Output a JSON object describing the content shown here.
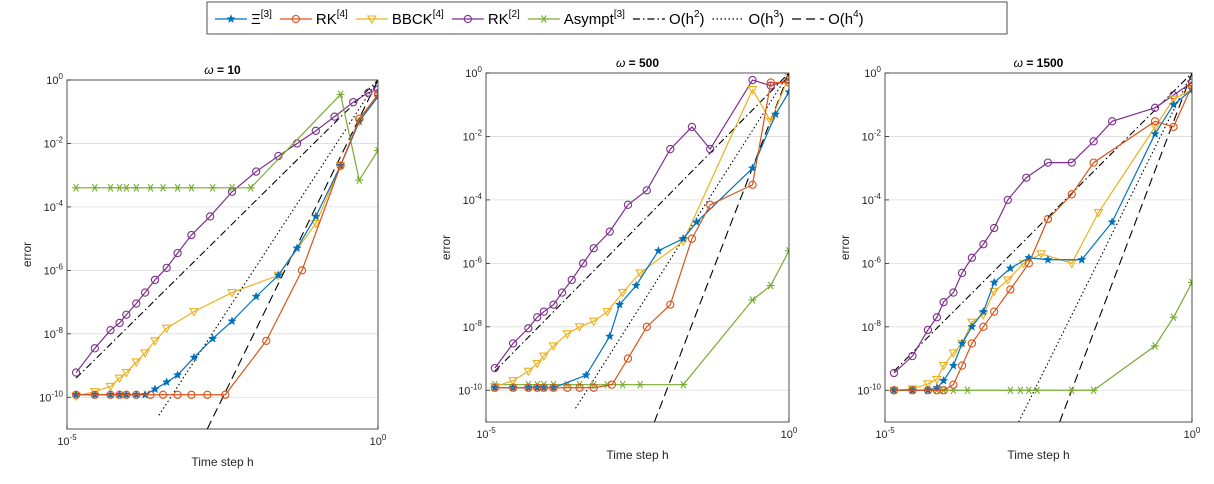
{
  "legend": {
    "entries": [
      {
        "series": "xi3",
        "label": "Ξ",
        "sup": "[3]"
      },
      {
        "series": "rk4",
        "label": "RK",
        "sup": "[4]"
      },
      {
        "series": "bbck4",
        "label": "BBCK",
        "sup": "[4]"
      },
      {
        "series": "rk2",
        "label": "RK",
        "sup": "[2]"
      },
      {
        "series": "asympt3",
        "label": "Asympt",
        "sup": "[3]"
      },
      {
        "series": "o2",
        "label": "O(h",
        "sup": "2",
        "after": ")"
      },
      {
        "series": "o3",
        "label": "O(h",
        "sup": "3",
        "after": ")"
      },
      {
        "series": "o4",
        "label": "O(h",
        "sup": "4",
        "after": ")"
      }
    ]
  },
  "styles": {
    "xi3": {
      "color": "#0072BD",
      "marker": "star",
      "dash": ""
    },
    "rk4": {
      "color": "#D95319",
      "marker": "circle",
      "dash": ""
    },
    "bbck4": {
      "color": "#EDB120",
      "marker": "triangle-down",
      "dash": ""
    },
    "rk2": {
      "color": "#7E2F8E",
      "marker": "circle",
      "dash": ""
    },
    "asympt3": {
      "color": "#77AC30",
      "marker": "asterisk",
      "dash": ""
    },
    "o2": {
      "color": "#000000",
      "marker": "none",
      "dash": "7,3,1.5,3"
    },
    "o3": {
      "color": "#000000",
      "marker": "none",
      "dash": "1.5,2.5"
    },
    "o4": {
      "color": "#000000",
      "marker": "none",
      "dash": "9,5"
    }
  },
  "chart_data": [
    {
      "type": "line",
      "title": "ω = 10",
      "xlabel": "Time step h",
      "ylabel": "error",
      "xscale": "log",
      "yscale": "log",
      "xlim": [
        1e-05,
        1
      ],
      "ylim": [
        1e-11,
        1
      ],
      "xticks": [
        {
          "base": "10",
          "exp": "-5"
        },
        {
          "base": "10",
          "exp": "0"
        }
      ],
      "yticks": [
        {
          "base": "10",
          "exp": "-10"
        },
        {
          "base": "10",
          "exp": "-8"
        },
        {
          "base": "10",
          "exp": "-6"
        },
        {
          "base": "10",
          "exp": "-4"
        },
        {
          "base": "10",
          "exp": "-2"
        },
        {
          "base": "10",
          "exp": "0"
        }
      ],
      "grid": "horizontal",
      "series": [
        {
          "key": "rk2",
          "x": [
            1.4e-05,
            2.8e-05,
            5e-05,
            7e-05,
            9e-05,
            0.00013,
            0.00018,
            0.00026,
            0.0004,
            0.0006,
            0.001,
            0.002,
            0.0045,
            0.011,
            0.025,
            0.05,
            0.1,
            0.2,
            0.4,
            0.7,
            1
          ],
          "y": [
            6e-10,
            3.5e-09,
            1.3e-08,
            2.2e-08,
            4e-08,
            9e-08,
            2e-07,
            5e-07,
            1.2e-06,
            3.5e-06,
            1.3e-05,
            5e-05,
            0.0003,
            0.0013,
            0.004,
            0.01,
            0.025,
            0.07,
            0.2,
            0.4,
            0.5
          ]
        },
        {
          "key": "asympt3",
          "x": [
            1.4e-05,
            2.8e-05,
            5e-05,
            7e-05,
            9e-05,
            0.00013,
            0.00022,
            0.00035,
            0.0006,
            0.001,
            0.0022,
            0.0045,
            0.009,
            0.25,
            0.5,
            1
          ],
          "y": [
            0.0004,
            0.0004,
            0.0004,
            0.0004,
            0.0004,
            0.0004,
            0.0004,
            0.0004,
            0.0004,
            0.0004,
            0.0004,
            0.0004,
            0.0004,
            0.35,
            0.0007,
            0.006
          ]
        },
        {
          "key": "bbck4",
          "x": [
            1.4e-05,
            2.8e-05,
            5e-05,
            7e-05,
            9e-05,
            0.00013,
            0.00018,
            0.00026,
            0.0004,
            0.0011,
            0.0045,
            0.025,
            0.1,
            0.25,
            0.5,
            1
          ],
          "y": [
            1.1e-10,
            1.5e-10,
            2.2e-10,
            4e-10,
            6e-10,
            1.3e-09,
            2.5e-09,
            6e-09,
            1.5e-08,
            5e-08,
            2e-07,
            7e-07,
            3e-05,
            0.002,
            0.05,
            0.35
          ]
        },
        {
          "key": "xi3",
          "x": [
            1.4e-05,
            2.8e-05,
            5e-05,
            7e-05,
            9e-05,
            0.00013,
            0.00018,
            0.00026,
            0.0004,
            0.0006,
            0.0011,
            0.0022,
            0.0045,
            0.011,
            0.025,
            0.05,
            0.1,
            0.25,
            0.5,
            1
          ],
          "y": [
            1.2e-10,
            1.2e-10,
            1.2e-10,
            1.2e-10,
            1.2e-10,
            1.2e-10,
            1.2e-10,
            1.8e-10,
            3e-10,
            5e-10,
            1.8e-09,
            7e-09,
            2.5e-08,
            1.5e-07,
            7e-07,
            5e-06,
            5e-05,
            0.002,
            0.05,
            0.3
          ]
        },
        {
          "key": "rk4",
          "x": [
            1.4e-05,
            2.8e-05,
            5e-05,
            7e-05,
            9e-05,
            0.00013,
            0.00022,
            0.00035,
            0.0006,
            0.001,
            0.0018,
            0.0035,
            0.016,
            0.06,
            0.25,
            0.5,
            1
          ],
          "y": [
            1.2e-10,
            1.2e-10,
            1.2e-10,
            1.2e-10,
            1.2e-10,
            1.2e-10,
            1.2e-10,
            1.2e-10,
            1.2e-10,
            1.2e-10,
            1.2e-10,
            1.2e-10,
            6e-09,
            1e-06,
            0.002,
            0.06,
            0.35
          ]
        },
        {
          "key": "o2",
          "x": [
            1.4e-05,
            1
          ],
          "y": [
            4e-10,
            1
          ]
        },
        {
          "key": "o3",
          "x": [
            0.0003,
            1
          ],
          "y": [
            2.7e-11,
            1
          ]
        },
        {
          "key": "o4",
          "x": [
            0.0018,
            1
          ],
          "y": [
            1e-11,
            1
          ]
        }
      ]
    },
    {
      "type": "line",
      "title": "ω = 500",
      "xlabel": "Time step h",
      "ylabel": "error",
      "xscale": "log",
      "yscale": "log",
      "xlim": [
        1e-05,
        1
      ],
      "ylim": [
        1e-11,
        1
      ],
      "xticks": [
        {
          "base": "10",
          "exp": "-5"
        },
        {
          "base": "10",
          "exp": "0"
        }
      ],
      "yticks": [
        {
          "base": "10",
          "exp": "-10"
        },
        {
          "base": "10",
          "exp": "-8"
        },
        {
          "base": "10",
          "exp": "-6"
        },
        {
          "base": "10",
          "exp": "-4"
        },
        {
          "base": "10",
          "exp": "-2"
        },
        {
          "base": "10",
          "exp": "0"
        }
      ],
      "grid": "horizontal",
      "series": [
        {
          "key": "rk2",
          "x": [
            1.4e-05,
            2.8e-05,
            5e-05,
            7e-05,
            9e-05,
            0.00013,
            0.00018,
            0.00026,
            0.0004,
            0.0006,
            0.0011,
            0.0022,
            0.0045,
            0.011,
            0.025,
            0.05,
            0.25,
            0.5,
            1
          ],
          "y": [
            5e-10,
            3e-09,
            9e-09,
            2e-08,
            3e-08,
            5e-08,
            1.2e-07,
            3e-07,
            1e-06,
            3e-06,
            1e-05,
            7e-05,
            0.0002,
            0.004,
            0.02,
            0.004,
            0.6,
            0.4,
            0.6
          ]
        },
        {
          "key": "asympt3",
          "x": [
            1.4e-05,
            2.8e-05,
            5e-05,
            7e-05,
            9e-05,
            0.00013,
            0.00022,
            0.00035,
            0.0006,
            0.001,
            0.0018,
            0.0035,
            0.018,
            0.25,
            0.5,
            1
          ],
          "y": [
            1.5e-10,
            1.5e-10,
            1.5e-10,
            1.5e-10,
            1.5e-10,
            1.5e-10,
            1.5e-10,
            1.5e-10,
            1.5e-10,
            1.5e-10,
            1.5e-10,
            1.5e-10,
            1.5e-10,
            7e-08,
            2e-07,
            2.5e-06
          ]
        },
        {
          "key": "bbck4",
          "x": [
            1.4e-05,
            2.8e-05,
            5e-05,
            7e-05,
            9e-05,
            0.00013,
            0.00022,
            0.00035,
            0.0006,
            0.001,
            0.0018,
            0.0035,
            0.018,
            0.25,
            0.5,
            1
          ],
          "y": [
            1.3e-10,
            2e-10,
            4e-10,
            7e-10,
            1.2e-09,
            2.5e-09,
            6e-09,
            1e-08,
            1.5e-08,
            3e-08,
            1.2e-07,
            5e-07,
            5e-06,
            0.3,
            0.03,
            0.8
          ]
        },
        {
          "key": "xi3",
          "x": [
            1.4e-05,
            2.8e-05,
            5e-05,
            7e-05,
            9e-05,
            0.00013,
            0.00045,
            0.0011,
            0.0016,
            0.003,
            0.007,
            0.018,
            0.03,
            0.25,
            0.6,
            1
          ],
          "y": [
            1.2e-10,
            1.2e-10,
            1.2e-10,
            1.2e-10,
            1.2e-10,
            1.2e-10,
            3e-10,
            5e-09,
            5e-08,
            2e-07,
            2.5e-06,
            6e-06,
            2e-05,
            0.001,
            0.05,
            0.25
          ]
        },
        {
          "key": "rk4",
          "x": [
            1.4e-05,
            2.8e-05,
            5e-05,
            7e-05,
            9e-05,
            0.00013,
            0.00022,
            0.00035,
            0.0006,
            0.0012,
            0.0022,
            0.0045,
            0.011,
            0.025,
            0.05,
            0.25,
            0.5,
            1
          ],
          "y": [
            1.2e-10,
            1.2e-10,
            1.2e-10,
            1.2e-10,
            1.2e-10,
            1.2e-10,
            1.2e-10,
            1.2e-10,
            1.2e-10,
            1.5e-10,
            1e-09,
            1e-08,
            5e-08,
            6e-06,
            7e-05,
            0.0003,
            0.5,
            0.5
          ]
        },
        {
          "key": "o2",
          "x": [
            1.4e-05,
            1
          ],
          "y": [
            4e-10,
            1
          ]
        },
        {
          "key": "o3",
          "x": [
            0.0003,
            1
          ],
          "y": [
            2.7e-11,
            1
          ]
        },
        {
          "key": "o4",
          "x": [
            0.006,
            1
          ],
          "y": [
            1e-11,
            1
          ]
        }
      ]
    },
    {
      "type": "line",
      "title": "ω = 1500",
      "xlabel": "Time step h",
      "ylabel": "error",
      "xscale": "log",
      "yscale": "log",
      "xlim": [
        1e-05,
        1
      ],
      "ylim": [
        1e-11,
        1
      ],
      "xticks": [
        {
          "base": "10",
          "exp": "-5"
        },
        {
          "base": "10",
          "exp": "0"
        }
      ],
      "yticks": [
        {
          "base": "10",
          "exp": "-10"
        },
        {
          "base": "10",
          "exp": "-8"
        },
        {
          "base": "10",
          "exp": "-6"
        },
        {
          "base": "10",
          "exp": "-4"
        },
        {
          "base": "10",
          "exp": "-2"
        },
        {
          "base": "10",
          "exp": "0"
        }
      ],
      "grid": "horizontal",
      "series": [
        {
          "key": "rk2",
          "x": [
            1.4e-05,
            2.8e-05,
            5e-05,
            7e-05,
            9e-05,
            0.00013,
            0.00018,
            0.00026,
            0.0004,
            0.0006,
            0.001,
            0.002,
            0.0045,
            0.011,
            0.025,
            0.05,
            0.25,
            0.5,
            1
          ],
          "y": [
            3.5e-10,
            1.2e-09,
            8e-09,
            2e-08,
            6e-08,
            1.2e-07,
            5e-07,
            1.5e-06,
            4e-06,
            1.3e-05,
            0.0001,
            0.0005,
            0.0015,
            0.0015,
            0.007,
            0.03,
            0.08,
            0.2,
            0.5
          ]
        },
        {
          "key": "asympt3",
          "x": [
            1.4e-05,
            2.8e-05,
            5e-05,
            7e-05,
            9e-05,
            0.00013,
            0.00022,
            0.0011,
            0.0016,
            0.0022,
            0.003,
            0.011,
            0.025,
            0.25,
            0.5,
            1
          ],
          "y": [
            1e-10,
            1e-10,
            1e-10,
            1e-10,
            1e-10,
            1e-10,
            1e-10,
            1e-10,
            1e-10,
            1e-10,
            1e-10,
            1e-10,
            1e-10,
            2.5e-09,
            2e-08,
            2.5e-07
          ]
        },
        {
          "key": "bbck4",
          "x": [
            1.4e-05,
            2.8e-05,
            5e-05,
            7e-05,
            9e-05,
            0.00013,
            0.00018,
            0.00026,
            0.0004,
            0.0006,
            0.001,
            0.0018,
            0.0035,
            0.011,
            0.03,
            0.25,
            0.5,
            1
          ],
          "y": [
            1e-10,
            1.1e-10,
            1.6e-10,
            2.2e-10,
            6e-10,
            1.5e-09,
            3e-09,
            1.4e-08,
            2.4e-08,
            1.3e-07,
            3e-07,
            1e-06,
            2e-06,
            1e-06,
            4e-05,
            0.02,
            0.15,
            0.3
          ]
        },
        {
          "key": "xi3",
          "x": [
            1.4e-05,
            2.8e-05,
            5e-05,
            7e-05,
            9e-05,
            0.00013,
            0.00018,
            0.00026,
            0.0004,
            0.0006,
            0.0011,
            0.0022,
            0.0045,
            0.016,
            0.05,
            0.25,
            0.5,
            1
          ],
          "y": [
            1e-10,
            1e-10,
            1e-10,
            1.2e-10,
            2e-10,
            6e-10,
            3e-09,
            1e-08,
            3e-08,
            2.5e-07,
            7e-07,
            1.5e-06,
            1.3e-06,
            1.3e-06,
            2e-05,
            0.012,
            0.1,
            0.3
          ]
        },
        {
          "key": "rk4",
          "x": [
            1.4e-05,
            2.8e-05,
            5e-05,
            7e-05,
            9e-05,
            0.00013,
            0.00018,
            0.00026,
            0.0004,
            0.0006,
            0.0011,
            0.0022,
            0.0045,
            0.011,
            0.025,
            0.25,
            0.5,
            1
          ],
          "y": [
            1e-10,
            1e-10,
            1e-10,
            1e-10,
            1e-10,
            1.5e-10,
            6e-10,
            3e-09,
            1e-08,
            3e-08,
            1.5e-07,
            1e-06,
            2.5e-05,
            0.00015,
            0.0015,
            0.03,
            0.02,
            0.4
          ]
        },
        {
          "key": "o2",
          "x": [
            1.4e-05,
            1
          ],
          "y": [
            4e-10,
            1
          ]
        },
        {
          "key": "o3",
          "x": [
            0.0015,
            1
          ],
          "y": [
            1e-11,
            1
          ]
        },
        {
          "key": "o4",
          "x": [
            0.007,
            1
          ],
          "y": [
            1e-11,
            1
          ]
        }
      ]
    }
  ]
}
